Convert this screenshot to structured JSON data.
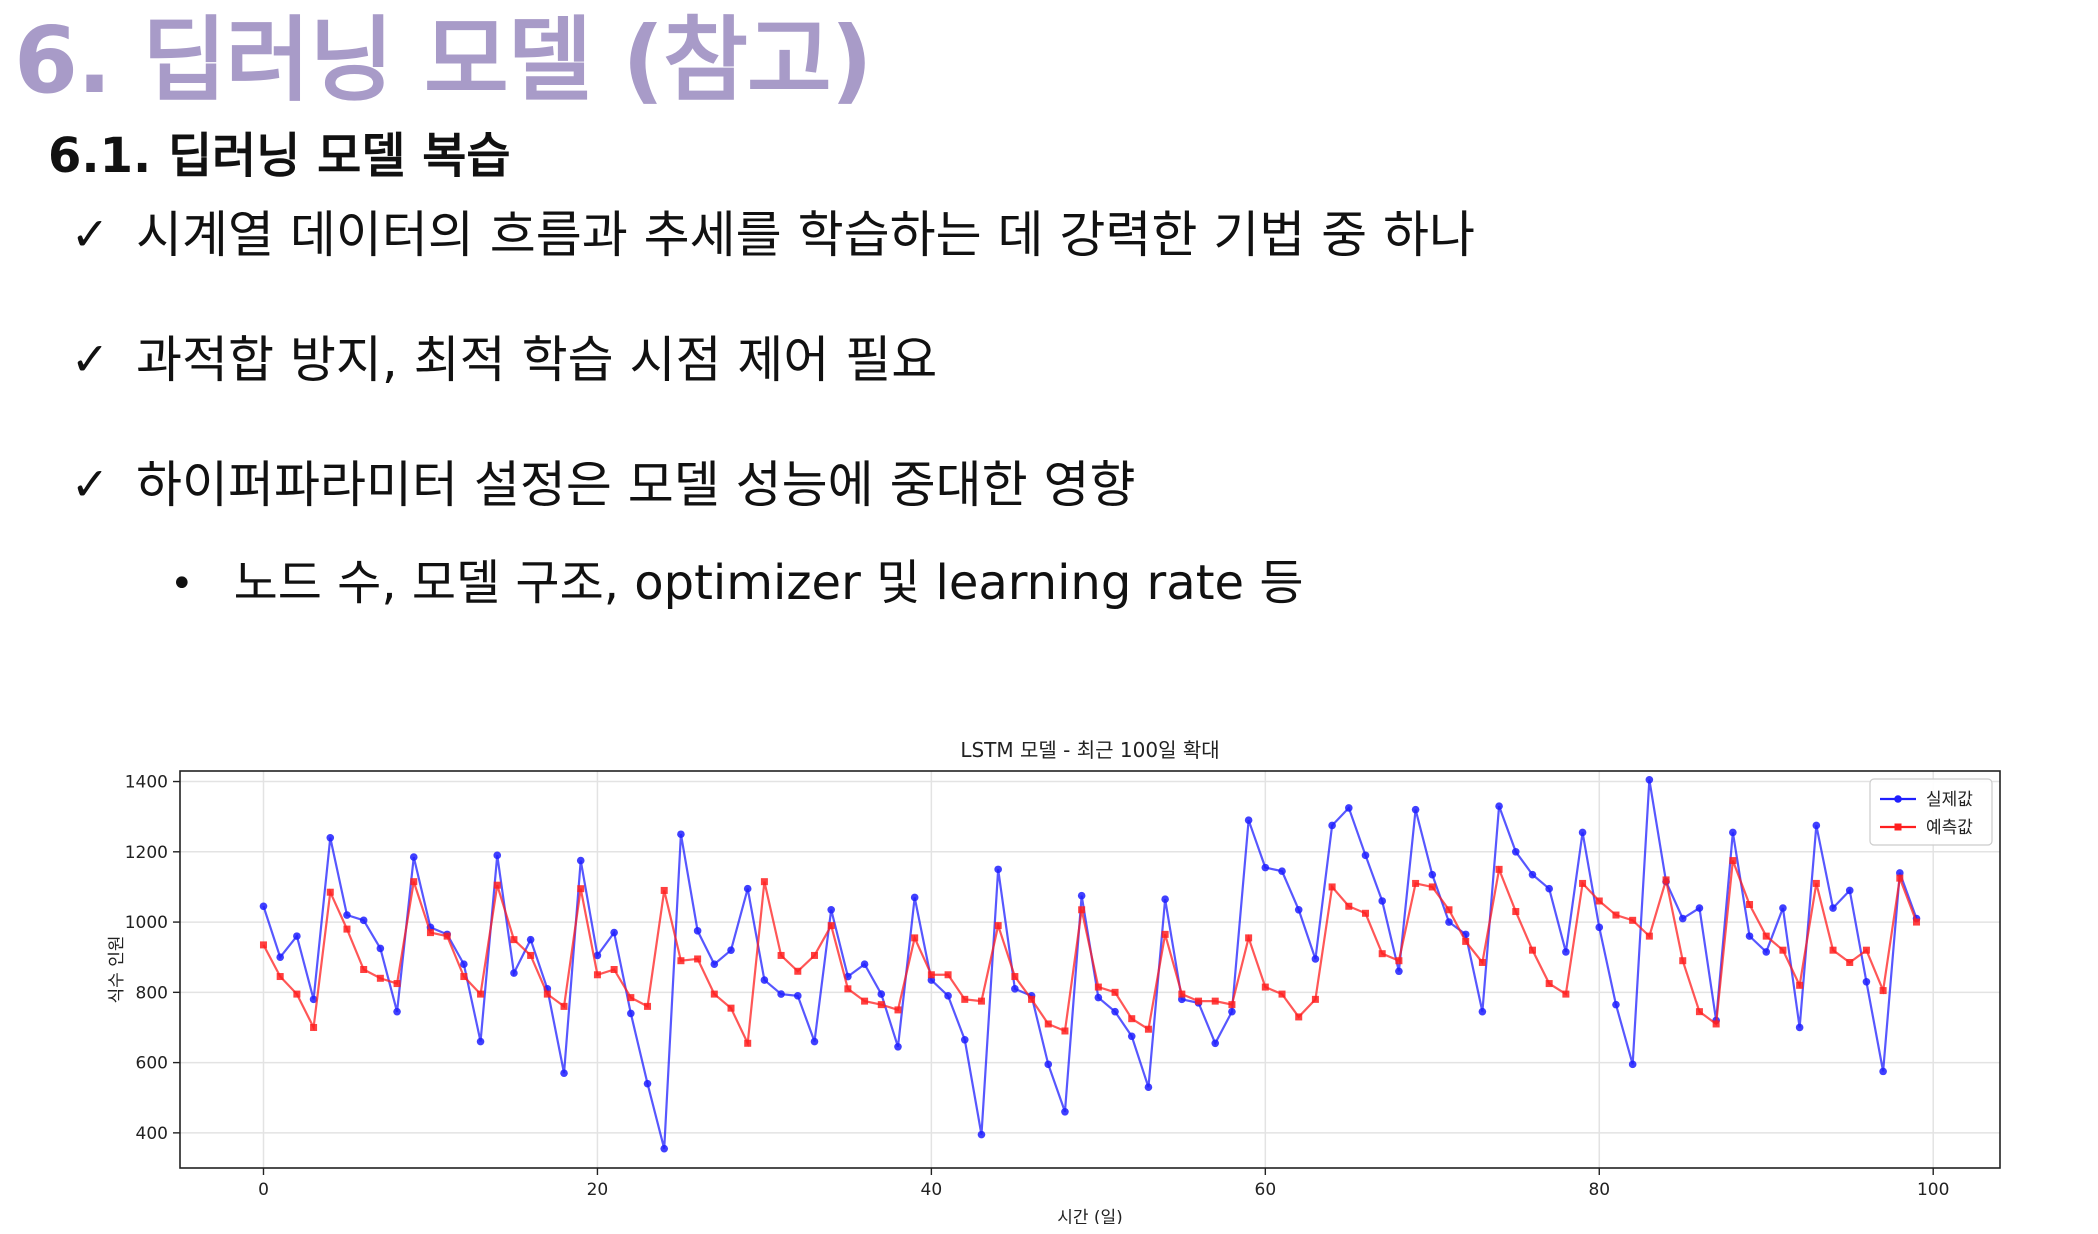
{
  "slide": {
    "title": "6. 딥러닝 모델 (참고)",
    "subtitle": "6.1. 딥러닝 모델 복습",
    "check_icon": "✓",
    "bullet_icon": "•",
    "bullets": [
      "시계열 데이터의 흐름과 추세를 학습하는 데 강력한 기법 중 하나",
      "과적합 방지, 최적 학습 시점 제어 필요",
      "하이퍼파라미터 설정은 모델 성능에 중대한 영향"
    ],
    "sub_bullets": [
      "노드 수, 모델 구조, optimizer 및 learning rate 등"
    ]
  },
  "chart_data": {
    "type": "line",
    "title": "LSTM 모델 - 최근 100일 확대",
    "xlabel": "시간 (일)",
    "ylabel": "식수 인원",
    "xlim": [
      -5,
      104
    ],
    "ylim": [
      300,
      1430
    ],
    "xticks": [
      0,
      20,
      40,
      60,
      80,
      100
    ],
    "yticks": [
      400,
      600,
      800,
      1000,
      1200,
      1400
    ],
    "grid": true,
    "legend_position": "top-right",
    "x": [
      0,
      1,
      2,
      3,
      4,
      5,
      6,
      7,
      8,
      9,
      10,
      11,
      12,
      13,
      14,
      15,
      16,
      17,
      18,
      19,
      20,
      21,
      22,
      23,
      24,
      25,
      26,
      27,
      28,
      29,
      30,
      31,
      32,
      33,
      34,
      35,
      36,
      37,
      38,
      39,
      40,
      41,
      42,
      43,
      44,
      45,
      46,
      47,
      48,
      49,
      50,
      51,
      52,
      53,
      54,
      55,
      56,
      57,
      58,
      59,
      60,
      61,
      62,
      63,
      64,
      65,
      66,
      67,
      68,
      69,
      70,
      71,
      72,
      73,
      74,
      75,
      76,
      77,
      78,
      79,
      80,
      81,
      82,
      83,
      84,
      85,
      86,
      87,
      88,
      89,
      90,
      91,
      92,
      93,
      94,
      95,
      96,
      97,
      98,
      99
    ],
    "series": [
      {
        "name": "실제값",
        "color": "#1f1fff",
        "marker": "circle",
        "values": [
          1045,
          900,
          960,
          780,
          1240,
          1020,
          1005,
          925,
          745,
          1185,
          985,
          965,
          880,
          660,
          1190,
          855,
          950,
          810,
          570,
          1175,
          905,
          970,
          740,
          540,
          355,
          1250,
          975,
          880,
          920,
          1095,
          835,
          795,
          790,
          660,
          1035,
          845,
          880,
          795,
          645,
          1070,
          835,
          790,
          665,
          395,
          1150,
          810,
          790,
          595,
          460,
          1075,
          785,
          745,
          675,
          530,
          1065,
          780,
          770,
          655,
          745,
          1290,
          1155,
          1145,
          1035,
          895,
          1275,
          1325,
          1190,
          1060,
          860,
          1320,
          1135,
          1000,
          965,
          745,
          1330,
          1200,
          1135,
          1095,
          915,
          1255,
          985,
          765,
          595,
          1405,
          1115,
          1010,
          1040,
          720,
          1255,
          960,
          915,
          1040,
          700,
          1275,
          1040,
          1090,
          830,
          575,
          1140,
          1010
        ]
      },
      {
        "name": "예측값",
        "color": "#ff1f1f",
        "marker": "square",
        "values": [
          935,
          845,
          795,
          700,
          1085,
          980,
          865,
          840,
          825,
          1115,
          970,
          960,
          845,
          795,
          1105,
          950,
          905,
          795,
          760,
          1095,
          850,
          865,
          785,
          760,
          1090,
          890,
          895,
          795,
          755,
          655,
          1115,
          905,
          860,
          905,
          990,
          810,
          775,
          765,
          750,
          955,
          850,
          850,
          780,
          775,
          990,
          845,
          780,
          710,
          690,
          1035,
          815,
          800,
          725,
          695,
          965,
          795,
          775,
          775,
          765,
          955,
          815,
          795,
          730,
          780,
          1100,
          1045,
          1025,
          910,
          890,
          1110,
          1100,
          1035,
          945,
          885,
          1150,
          1030,
          920,
          825,
          795,
          1110,
          1060,
          1020,
          1005,
          960,
          1120,
          890,
          745,
          710,
          1175,
          1050,
          960,
          920,
          820,
          1110,
          920,
          885,
          920,
          805,
          1125,
          1000
        ]
      }
    ]
  }
}
